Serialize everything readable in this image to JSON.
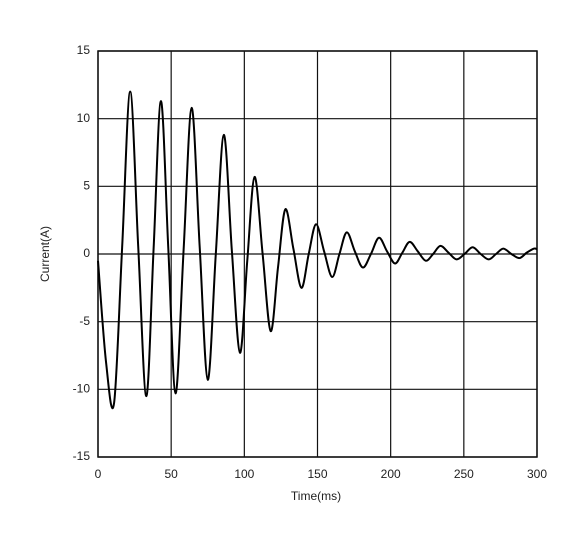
{
  "chart_data": {
    "type": "line",
    "x_label": "Time(ms)",
    "y_label": "Current(A)",
    "x": [
      0,
      5.5,
      11,
      16.5,
      22,
      27.5,
      33,
      38,
      43,
      48,
      53,
      58.5,
      64,
      69.5,
      75,
      80.5,
      86,
      91.5,
      97,
      102,
      107,
      112.5,
      118,
      123,
      128,
      133.5,
      139,
      144,
      149,
      154.5,
      160,
      165,
      170,
      175.5,
      181,
      186.5,
      192,
      197.5,
      203,
      208,
      213,
      218.5,
      224,
      229,
      234,
      239.5,
      245,
      250.5,
      256,
      261.5,
      267,
      272,
      277,
      282.5,
      288,
      293,
      298,
      300
    ],
    "values": [
      -0.5,
      -8,
      -11,
      0.5,
      12,
      0.5,
      -10.5,
      0.4,
      11.3,
      0.5,
      -10.3,
      0.3,
      10.8,
      0.5,
      -9.3,
      0,
      8.8,
      0.2,
      -7.3,
      -0.5,
      5.7,
      0,
      -5.7,
      -1,
      3.3,
      0.4,
      -2.5,
      0,
      2.2,
      0.2,
      -1.7,
      0,
      1.6,
      0.2,
      -1,
      0,
      1.2,
      0.2,
      -0.7,
      0.1,
      0.9,
      0.2,
      -0.5,
      0,
      0.6,
      0.1,
      -0.4,
      0,
      0.5,
      0,
      -0.4,
      0,
      0.4,
      0,
      -0.3,
      0.1,
      0.4,
      0.35
    ],
    "color": "#000000",
    "xlim": [
      0,
      300
    ],
    "xticks": [
      0,
      50,
      100,
      150,
      200,
      250,
      300
    ],
    "ylim": [
      -15,
      15
    ],
    "yticks": [
      -15,
      -10,
      -5,
      0,
      5,
      10,
      15
    ],
    "grid": true
  }
}
